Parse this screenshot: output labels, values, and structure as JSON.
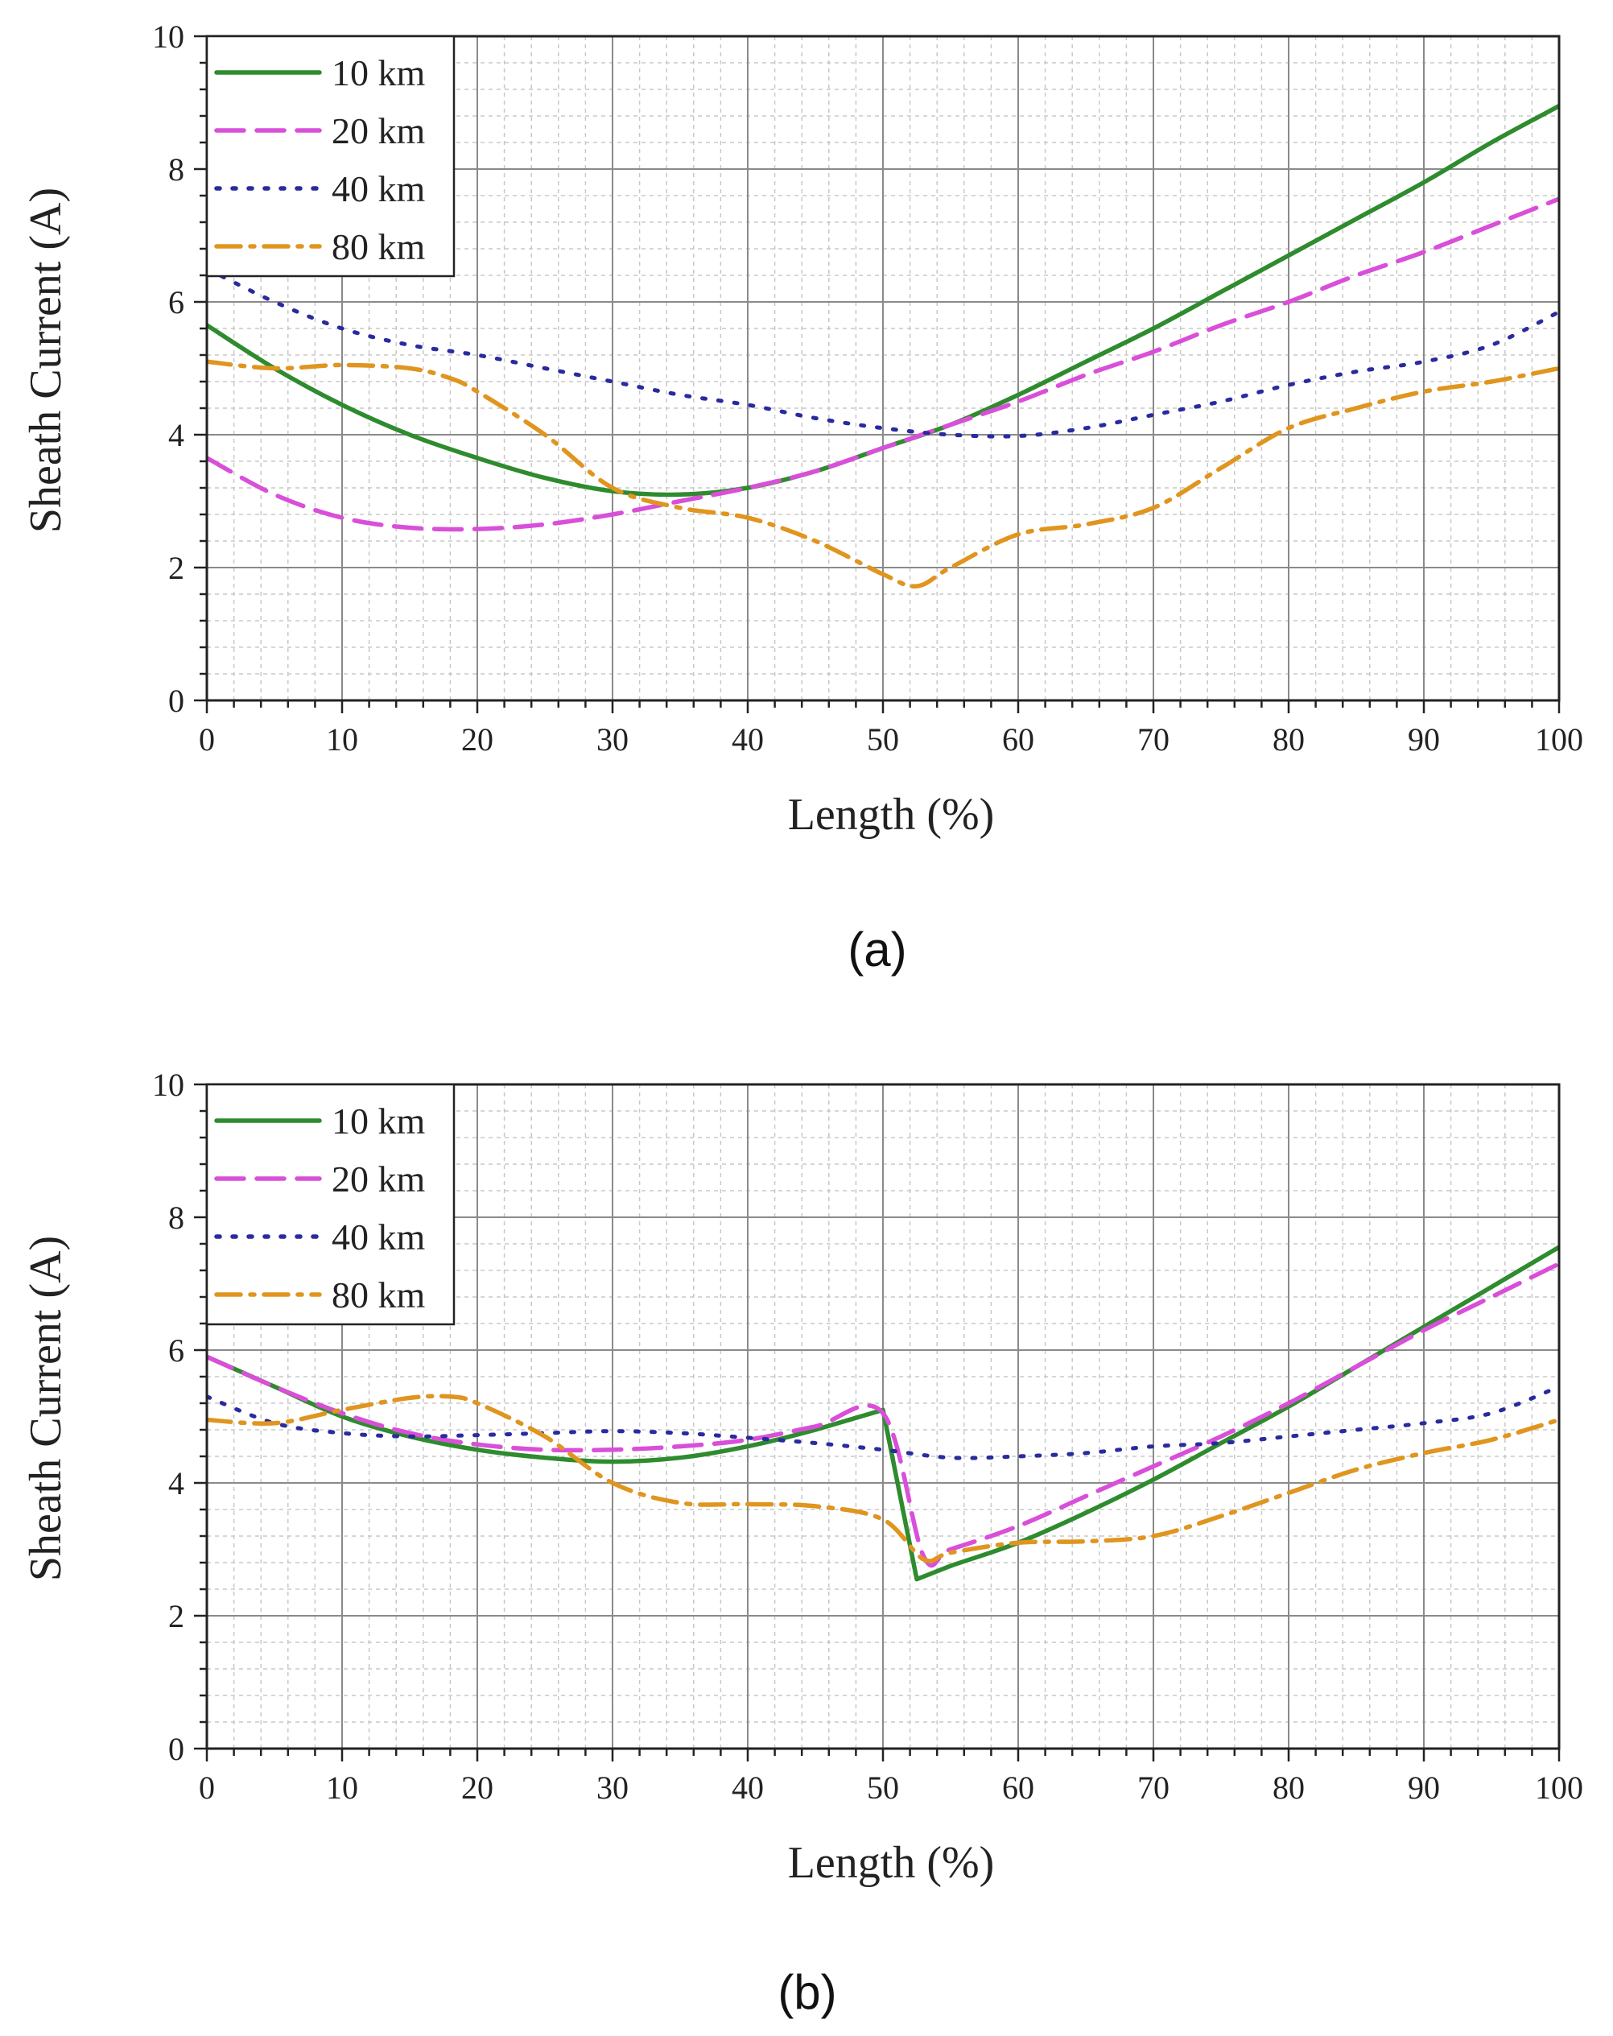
{
  "chart_data": [
    {
      "type": "line",
      "panel_label": "(a)",
      "xlabel": "Length (%)",
      "ylabel": "Sheath Current (A)",
      "xlim": [
        0,
        100
      ],
      "ylim": [
        0,
        10
      ],
      "xticks": [
        0,
        10,
        20,
        30,
        40,
        50,
        60,
        70,
        80,
        90,
        100
      ],
      "yticks": [
        0,
        2,
        4,
        6,
        8,
        10
      ],
      "grid": true,
      "legend_position": "top-left",
      "series": [
        {
          "name": "10 km",
          "color": "#2e8b2e",
          "style": "solid",
          "x": [
            0,
            5,
            10,
            15,
            20,
            25,
            30,
            35,
            40,
            45,
            50,
            55,
            60,
            65,
            70,
            75,
            80,
            85,
            90,
            95,
            100
          ],
          "y": [
            5.65,
            5.0,
            4.45,
            4.0,
            3.65,
            3.35,
            3.15,
            3.1,
            3.2,
            3.45,
            3.8,
            4.15,
            4.6,
            5.1,
            5.6,
            6.15,
            6.7,
            7.25,
            7.8,
            8.4,
            8.95
          ]
        },
        {
          "name": "20 km",
          "color": "#d94fd9",
          "style": "dashed",
          "x": [
            0,
            5,
            10,
            15,
            20,
            25,
            30,
            35,
            40,
            45,
            50,
            55,
            60,
            65,
            70,
            75,
            80,
            85,
            90,
            95,
            100
          ],
          "y": [
            3.65,
            3.1,
            2.75,
            2.6,
            2.58,
            2.65,
            2.8,
            3.0,
            3.2,
            3.45,
            3.8,
            4.15,
            4.5,
            4.9,
            5.25,
            5.65,
            6.0,
            6.4,
            6.75,
            7.15,
            7.55
          ]
        },
        {
          "name": "40 km",
          "color": "#2a2aa0",
          "style": "dotted",
          "x": [
            0,
            5,
            10,
            15,
            20,
            25,
            30,
            35,
            40,
            45,
            50,
            55,
            60,
            65,
            70,
            75,
            80,
            85,
            90,
            95,
            100
          ],
          "y": [
            6.5,
            6.0,
            5.6,
            5.35,
            5.2,
            5.0,
            4.8,
            4.6,
            4.45,
            4.25,
            4.1,
            4.0,
            3.98,
            4.1,
            4.3,
            4.5,
            4.75,
            4.95,
            5.1,
            5.35,
            5.85
          ]
        },
        {
          "name": "80 km",
          "color": "#e0951f",
          "style": "dashdot",
          "x": [
            0,
            5,
            10,
            15,
            18,
            20,
            25,
            30,
            35,
            40,
            45,
            50,
            52.5,
            55,
            60,
            65,
            70,
            75,
            80,
            85,
            90,
            95,
            100
          ],
          "y": [
            5.1,
            5.0,
            5.05,
            5.0,
            4.85,
            4.65,
            4.0,
            3.2,
            2.9,
            2.75,
            2.4,
            1.9,
            1.72,
            2.0,
            2.5,
            2.65,
            2.9,
            3.5,
            4.1,
            4.4,
            4.65,
            4.8,
            5.0
          ]
        }
      ]
    },
    {
      "type": "line",
      "panel_label": "(b)",
      "xlabel": "Length (%)",
      "ylabel": "Sheath Current (A)",
      "xlim": [
        0,
        100
      ],
      "ylim": [
        0,
        10
      ],
      "xticks": [
        0,
        10,
        20,
        30,
        40,
        50,
        60,
        70,
        80,
        90,
        100
      ],
      "yticks": [
        0,
        2,
        4,
        6,
        8,
        10
      ],
      "grid": true,
      "legend_position": "top-left",
      "series": [
        {
          "name": "10 km",
          "color": "#2e8b2e",
          "style": "solid",
          "x": [
            0,
            5,
            10,
            15,
            20,
            25,
            30,
            35,
            40,
            45,
            50,
            52.5,
            55,
            60,
            65,
            70,
            75,
            80,
            85,
            90,
            95,
            100
          ],
          "y": [
            5.9,
            5.45,
            5.0,
            4.7,
            4.5,
            4.38,
            4.32,
            4.38,
            4.55,
            4.8,
            5.1,
            2.55,
            2.75,
            3.1,
            3.55,
            4.05,
            4.6,
            5.15,
            5.75,
            6.35,
            6.95,
            7.55
          ]
        },
        {
          "name": "20 km",
          "color": "#d94fd9",
          "style": "dashed",
          "x": [
            0,
            5,
            10,
            15,
            20,
            25,
            30,
            35,
            40,
            45,
            50,
            53,
            55,
            60,
            65,
            70,
            75,
            80,
            85,
            90,
            95,
            100
          ],
          "y": [
            5.9,
            5.45,
            5.05,
            4.75,
            4.58,
            4.5,
            4.5,
            4.55,
            4.65,
            4.85,
            5.05,
            2.9,
            3.0,
            3.35,
            3.8,
            4.25,
            4.7,
            5.2,
            5.75,
            6.3,
            6.8,
            7.3
          ]
        },
        {
          "name": "40 km",
          "color": "#2a2aa0",
          "style": "dotted",
          "x": [
            0,
            5,
            10,
            15,
            20,
            25,
            30,
            35,
            40,
            45,
            50,
            55,
            60,
            65,
            70,
            75,
            80,
            85,
            90,
            95,
            100
          ],
          "y": [
            5.3,
            4.9,
            4.75,
            4.7,
            4.72,
            4.75,
            4.78,
            4.75,
            4.68,
            4.6,
            4.5,
            4.38,
            4.4,
            4.45,
            4.55,
            4.6,
            4.7,
            4.8,
            4.9,
            5.05,
            5.45
          ]
        },
        {
          "name": "80 km",
          "color": "#e0951f",
          "style": "dashdot",
          "x": [
            0,
            5,
            10,
            15,
            18,
            20,
            25,
            30,
            35,
            40,
            45,
            50,
            53,
            55,
            60,
            65,
            70,
            75,
            80,
            85,
            90,
            95,
            100
          ],
          "y": [
            4.95,
            4.9,
            5.1,
            5.28,
            5.3,
            5.2,
            4.7,
            4.0,
            3.7,
            3.68,
            3.65,
            3.45,
            2.85,
            2.95,
            3.1,
            3.12,
            3.2,
            3.5,
            3.85,
            4.2,
            4.45,
            4.65,
            4.95
          ]
        }
      ]
    }
  ]
}
